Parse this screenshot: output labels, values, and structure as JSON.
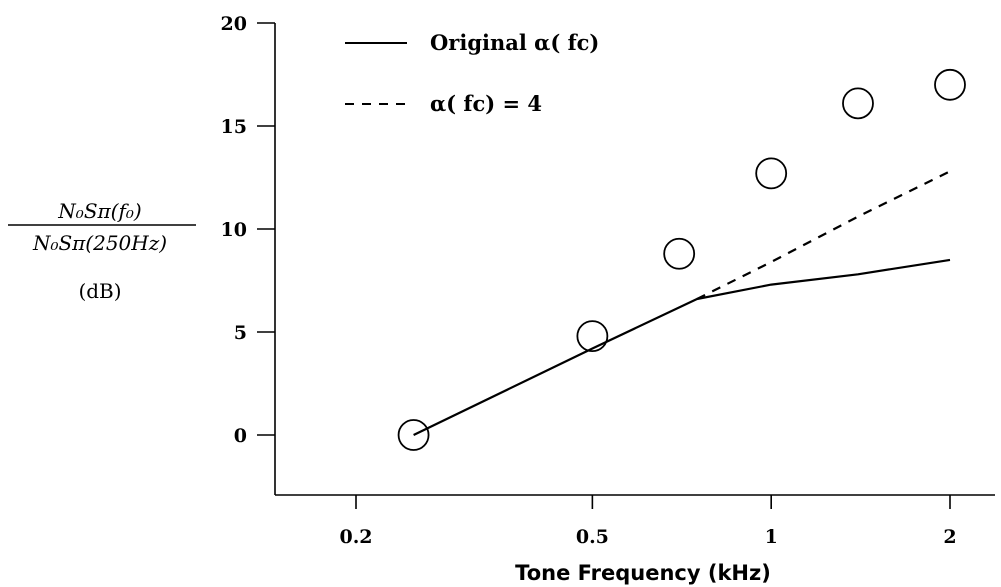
{
  "chart_data": {
    "type": "line",
    "xscale": "log",
    "xlabel": "Tone Frequency (kHz)",
    "ylabel": {
      "numerator": "N₀Sπ(f₀)",
      "denominator": "N₀Sπ(250Hz)",
      "unit": "(dB)"
    },
    "xlim": [
      0.15,
      2.2
    ],
    "ylim": [
      -3,
      20
    ],
    "xticks": [
      {
        "value": 0.2,
        "label": "0.2"
      },
      {
        "value": 0.5,
        "label": "0.5"
      },
      {
        "value": 1,
        "label": "1"
      },
      {
        "value": 2,
        "label": "2"
      }
    ],
    "yticks": [
      {
        "value": 0,
        "label": "0"
      },
      {
        "value": 5,
        "label": "5"
      },
      {
        "value": 10,
        "label": "10"
      },
      {
        "value": 15,
        "label": "15"
      },
      {
        "value": 20,
        "label": "20"
      }
    ],
    "legend_position": "top-left",
    "series": [
      {
        "name": "Original α( fc)",
        "style": "solid",
        "x": [
          0.25,
          0.5,
          0.75,
          1.0,
          1.4,
          2.0
        ],
        "y": [
          0,
          4.2,
          6.6,
          7.3,
          7.8,
          8.5
        ]
      },
      {
        "name": "α( fc) = 4",
        "style": "dashed",
        "x": [
          0.75,
          1.0,
          1.4,
          2.0
        ],
        "y": [
          6.6,
          8.4,
          10.6,
          12.8
        ]
      },
      {
        "name": "",
        "style": "markers",
        "marker": "open-circle",
        "x": [
          0.25,
          0.5,
          0.7,
          1.0,
          1.4,
          2.0
        ],
        "y": [
          0,
          4.8,
          8.8,
          12.7,
          16.1,
          17.0
        ]
      }
    ],
    "colors": {
      "line": "#000000",
      "background": "#ffffff"
    }
  }
}
